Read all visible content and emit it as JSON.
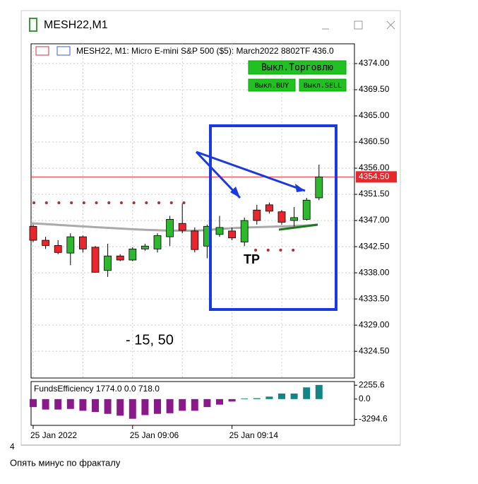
{
  "window": {
    "title": "MESH22,M1"
  },
  "header": {
    "symbol": "MESH22, M1:  Micro E-mini S&P 500 ($5): March2022",
    "overlay": "8802TF 436.0"
  },
  "buttons": {
    "trade": "Выкл.Торговлю",
    "buy": "Выкл.BUY",
    "sell": "Выкл.SELL"
  },
  "annotations": {
    "result": "- 15, 50",
    "tp": "TP"
  },
  "footer": {
    "number": "4",
    "caption": "Опять минус по фракталу"
  },
  "chart_data": [
    {
      "type": "candlestick",
      "categories": [
        "25 Jan 2022",
        null,
        null,
        null,
        null,
        null,
        null,
        null,
        "25 Jan 09:06",
        null,
        null,
        null,
        null,
        null,
        null,
        null,
        "25 Jan 09:14",
        null,
        null,
        null,
        null,
        null,
        null,
        null
      ],
      "open": [
        4346.0,
        4343.6,
        4342.7,
        4341.4,
        4344.2,
        4342.4,
        4338.4,
        4340.9,
        4340.2,
        4342.1,
        4342.1,
        4344.2,
        4346.5,
        4345.2,
        4342.6,
        4344.6,
        4345.2,
        4343.3,
        4348.8,
        4349.7,
        4348.5,
        4347.0,
        4347.2,
        4350.9
      ],
      "high": [
        4346.3,
        4344.2,
        4343.6,
        4344.8,
        4344.4,
        4342.6,
        4343.0,
        4341.2,
        4342.4,
        4343.0,
        4344.8,
        4347.8,
        4349.9,
        4345.8,
        4346.3,
        4347.8,
        4345.8,
        4347.5,
        4349.7,
        4350.1,
        4348.8,
        4349.3,
        4350.9,
        4356.6
      ],
      "low": [
        4343.3,
        4342.1,
        4341.2,
        4339.3,
        4341.5,
        4338.1,
        4337.3,
        4340.0,
        4340.0,
        4341.8,
        4341.5,
        4342.6,
        4344.8,
        4341.5,
        4340.5,
        4344.2,
        4343.6,
        4342.6,
        4346.3,
        4348.2,
        4346.3,
        4346.0,
        4347.0,
        4350.5
      ],
      "close": [
        4343.6,
        4342.7,
        4341.5,
        4344.2,
        4342.1,
        4338.1,
        4340.9,
        4340.2,
        4342.1,
        4342.6,
        4344.4,
        4347.2,
        4345.3,
        4342.0,
        4346.0,
        4345.8,
        4344.0,
        4347.0,
        4347.0,
        4348.6,
        4346.7,
        4347.5,
        4350.5,
        4354.5
      ],
      "colors": {
        "up": "#2db82d",
        "down": "#e8262b"
      },
      "ylim": [
        4319.9,
        4377.4
      ],
      "yticks": [
        {
          "value": 4374,
          "label": "4374.00"
        },
        {
          "value": 4369.5,
          "label": "4369.50"
        },
        {
          "value": 4365,
          "label": "4365.00"
        },
        {
          "value": 4360.5,
          "label": "4360.50"
        },
        {
          "value": 4356,
          "label": "4356.00"
        },
        {
          "value": 4351.5,
          "label": "4351.50"
        },
        {
          "value": 4347,
          "label": "4347.00"
        },
        {
          "value": 4342.5,
          "label": "4342.50"
        },
        {
          "value": 4338,
          "label": "4338.00"
        },
        {
          "value": 4333.5,
          "label": "4333.50"
        },
        {
          "value": 4329,
          "label": "4329.00"
        },
        {
          "value": 4324.5,
          "label": "4324.50"
        }
      ],
      "last_price": {
        "value": 4354.5,
        "label": "4354.50"
      },
      "grid": true
    },
    {
      "type": "bar",
      "title": "FundsEfficiency 1774.0 0.0 718.0",
      "values": [
        -1300,
        -1700,
        -1700,
        -1600,
        -1900,
        -2100,
        -2400,
        -2700,
        -3200,
        -2600,
        -2400,
        -2300,
        -1900,
        -1900,
        -1300,
        -900,
        -400,
        100,
        150,
        400,
        900,
        900,
        1900,
        2300
      ],
      "colors": {
        "up": "#148585",
        "down": "#8a1a8a"
      },
      "ylim": [
        -4270,
        2850
      ],
      "yticks": [
        2255.6,
        {
          "value": 0,
          "label": "0.0"
        },
        -3294.6
      ]
    }
  ]
}
